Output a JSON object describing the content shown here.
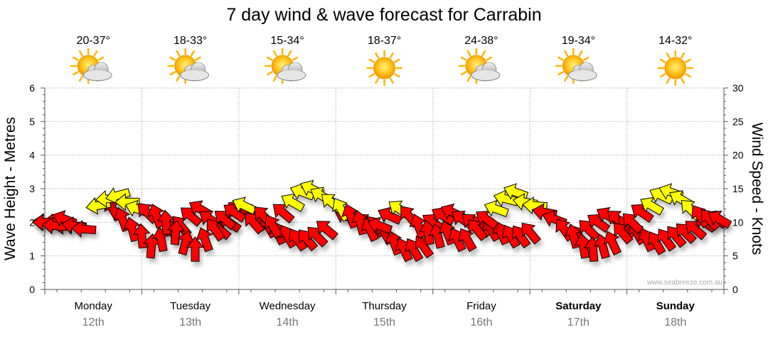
{
  "chart_data": {
    "type": "line",
    "title": "7 day wind & wave forecast for Carrabin",
    "ylabel_left": "Wave Height - Metres",
    "ylabel_right": "Wind Speed - Knots",
    "left_axis": {
      "min": 0,
      "max": 6,
      "ticks": [
        "0",
        "1",
        "2",
        "3",
        "4",
        "5",
        "6"
      ]
    },
    "right_axis": {
      "min": 0,
      "max": 30,
      "ticks": [
        "0",
        "5",
        "10",
        "15",
        "20",
        "25",
        "30"
      ]
    },
    "watermark": "www.seabreeze.com.au",
    "days": [
      {
        "name": "Monday",
        "date": "12th",
        "temp": "20-37°",
        "weather": "partly-cloudy-icon",
        "bold": false
      },
      {
        "name": "Tuesday",
        "date": "13th",
        "temp": "18-33°",
        "weather": "partly-cloudy-icon",
        "bold": false
      },
      {
        "name": "Wednesday",
        "date": "14th",
        "temp": "15-34°",
        "weather": "partly-cloudy-icon",
        "bold": false
      },
      {
        "name": "Thursday",
        "date": "15th",
        "temp": "18-37°",
        "weather": "sunny-icon",
        "bold": false
      },
      {
        "name": "Friday",
        "date": "16th",
        "temp": "24-38°",
        "weather": "partly-cloudy-icon",
        "bold": false
      },
      {
        "name": "Saturday",
        "date": "17th",
        "temp": "19-34°",
        "weather": "partly-cloudy-icon",
        "bold": true
      },
      {
        "name": "Sunday",
        "date": "18th",
        "temp": "14-32°",
        "weather": "sunny-icon",
        "bold": true
      }
    ],
    "wind_series": {
      "name": "Wind Speed",
      "x_unit": "days",
      "points": [
        {
          "t": 0.0,
          "v": 10.0,
          "dir": 180
        },
        {
          "t": 0.1,
          "v": 9.5,
          "dir": 185
        },
        {
          "t": 0.2,
          "v": 10.5,
          "dir": 200
        },
        {
          "t": 0.3,
          "v": 9.5,
          "dir": 190
        },
        {
          "t": 0.4,
          "v": 9.0,
          "dir": 185
        },
        {
          "t": 0.55,
          "v": 12.5,
          "dir": 170
        },
        {
          "t": 0.65,
          "v": 13.5,
          "dir": 175
        },
        {
          "t": 0.75,
          "v": 14.0,
          "dir": 165
        },
        {
          "t": 0.85,
          "v": 13.0,
          "dir": 180
        },
        {
          "t": 0.95,
          "v": 12.0,
          "dir": 200
        },
        {
          "t": 1.05,
          "v": 11.5,
          "dir": 225
        },
        {
          "t": 1.15,
          "v": 11.0,
          "dir": 250
        },
        {
          "t": 1.25,
          "v": 10.0,
          "dir": 265
        },
        {
          "t": 1.35,
          "v": 8.5,
          "dir": 275
        },
        {
          "t": 1.45,
          "v": 7.0,
          "dir": 285
        },
        {
          "t": 1.55,
          "v": 6.0,
          "dir": 270
        },
        {
          "t": 1.65,
          "v": 7.5,
          "dir": 250
        },
        {
          "t": 1.75,
          "v": 9.0,
          "dir": 235
        },
        {
          "t": 1.85,
          "v": 10.5,
          "dir": 220
        },
        {
          "t": 1.95,
          "v": 11.5,
          "dir": 215
        },
        {
          "t": 2.05,
          "v": 12.5,
          "dir": 205
        },
        {
          "t": 2.15,
          "v": 10.0,
          "dir": 230
        },
        {
          "t": 2.25,
          "v": 11.0,
          "dir": 225
        },
        {
          "t": 2.35,
          "v": 9.5,
          "dir": 240
        },
        {
          "t": 2.45,
          "v": 11.5,
          "dir": 220
        },
        {
          "t": 2.55,
          "v": 13.0,
          "dir": 210
        },
        {
          "t": 2.65,
          "v": 14.5,
          "dir": 200
        },
        {
          "t": 2.75,
          "v": 15.0,
          "dir": 205
        },
        {
          "t": 2.85,
          "v": 14.0,
          "dir": 210
        },
        {
          "t": 2.95,
          "v": 13.0,
          "dir": 220
        },
        {
          "t": 3.05,
          "v": 12.0,
          "dir": 240
        },
        {
          "t": 3.15,
          "v": 11.0,
          "dir": 250
        },
        {
          "t": 3.25,
          "v": 10.0,
          "dir": 255
        },
        {
          "t": 3.35,
          "v": 9.0,
          "dir": 245
        },
        {
          "t": 3.45,
          "v": 9.5,
          "dir": 200
        },
        {
          "t": 3.55,
          "v": 11.0,
          "dir": 205
        },
        {
          "t": 3.65,
          "v": 12.0,
          "dir": 215
        },
        {
          "t": 3.75,
          "v": 11.0,
          "dir": 230
        },
        {
          "t": 3.85,
          "v": 9.5,
          "dir": 250
        },
        {
          "t": 3.95,
          "v": 8.5,
          "dir": 260
        },
        {
          "t": 4.05,
          "v": 8.0,
          "dir": 255
        },
        {
          "t": 4.15,
          "v": 8.5,
          "dir": 250
        },
        {
          "t": 4.25,
          "v": 7.5,
          "dir": 245
        },
        {
          "t": 4.35,
          "v": 7.5,
          "dir": 240
        },
        {
          "t": 4.45,
          "v": 9.0,
          "dir": 230
        },
        {
          "t": 4.55,
          "v": 10.5,
          "dir": 215
        },
        {
          "t": 4.65,
          "v": 12.0,
          "dir": 200
        },
        {
          "t": 4.75,
          "v": 13.5,
          "dir": 195
        },
        {
          "t": 4.85,
          "v": 14.5,
          "dir": 200
        },
        {
          "t": 4.95,
          "v": 13.0,
          "dir": 190
        },
        {
          "t": 5.05,
          "v": 12.5,
          "dir": 185
        },
        {
          "t": 5.15,
          "v": 11.5,
          "dir": 190
        },
        {
          "t": 5.25,
          "v": 10.5,
          "dir": 200
        },
        {
          "t": 5.35,
          "v": 9.0,
          "dir": 235
        },
        {
          "t": 5.45,
          "v": 8.0,
          "dir": 255
        },
        {
          "t": 5.55,
          "v": 6.5,
          "dir": 260
        },
        {
          "t": 5.65,
          "v": 6.0,
          "dir": 265
        },
        {
          "t": 5.75,
          "v": 6.5,
          "dir": 255
        },
        {
          "t": 5.85,
          "v": 7.0,
          "dir": 245
        },
        {
          "t": 5.95,
          "v": 8.5,
          "dir": 230
        },
        {
          "t": 6.05,
          "v": 10.0,
          "dir": 225
        },
        {
          "t": 6.15,
          "v": 11.5,
          "dir": 215
        },
        {
          "t": 6.25,
          "v": 12.5,
          "dir": 210
        },
        {
          "t": 6.35,
          "v": 14.0,
          "dir": 205
        },
        {
          "t": 6.45,
          "v": 14.5,
          "dir": 200
        },
        {
          "t": 6.55,
          "v": 13.5,
          "dir": 210
        },
        {
          "t": 6.65,
          "v": 12.0,
          "dir": 225
        },
        {
          "t": 6.75,
          "v": 11.0,
          "dir": 235
        },
        {
          "t": 6.85,
          "v": 10.5,
          "dir": 230
        },
        {
          "t": 6.95,
          "v": 10.5,
          "dir": 210
        }
      ]
    },
    "wave_series": {
      "name": "Wave Height",
      "x_unit": "days",
      "points": [
        {
          "t": 0.0,
          "v": 2.0,
          "dir": 185
        },
        {
          "t": 0.1,
          "v": 2.0,
          "dir": 180
        },
        {
          "t": 0.2,
          "v": 1.9,
          "dir": 175
        },
        {
          "t": 0.3,
          "v": 1.9,
          "dir": 185
        },
        {
          "t": 0.7,
          "v": 2.4,
          "dir": 240
        },
        {
          "t": 0.8,
          "v": 2.1,
          "dir": 250
        },
        {
          "t": 0.9,
          "v": 1.8,
          "dir": 255
        },
        {
          "t": 1.0,
          "v": 1.6,
          "dir": 265
        },
        {
          "t": 1.1,
          "v": 1.3,
          "dir": 275
        },
        {
          "t": 1.2,
          "v": 1.5,
          "dir": 260
        },
        {
          "t": 1.3,
          "v": 1.8,
          "dir": 240
        },
        {
          "t": 1.4,
          "v": 1.9,
          "dir": 230
        },
        {
          "t": 1.5,
          "v": 2.2,
          "dir": 220
        },
        {
          "t": 1.6,
          "v": 2.4,
          "dir": 210
        },
        {
          "t": 1.7,
          "v": 2.1,
          "dir": 215
        },
        {
          "t": 1.8,
          "v": 1.8,
          "dir": 220
        },
        {
          "t": 1.9,
          "v": 2.0,
          "dir": 215
        },
        {
          "t": 2.0,
          "v": 2.4,
          "dir": 210
        },
        {
          "t": 2.1,
          "v": 2.3,
          "dir": 220
        },
        {
          "t": 2.2,
          "v": 2.1,
          "dir": 235
        },
        {
          "t": 2.3,
          "v": 1.9,
          "dir": 240
        },
        {
          "t": 2.4,
          "v": 1.7,
          "dir": 245
        },
        {
          "t": 2.5,
          "v": 1.6,
          "dir": 240
        },
        {
          "t": 2.6,
          "v": 1.5,
          "dir": 235
        },
        {
          "t": 2.7,
          "v": 1.5,
          "dir": 230
        },
        {
          "t": 2.8,
          "v": 1.6,
          "dir": 225
        },
        {
          "t": 2.9,
          "v": 1.8,
          "dir": 220
        },
        {
          "t": 3.1,
          "v": 2.2,
          "dir": 205
        },
        {
          "t": 3.2,
          "v": 2.1,
          "dir": 210
        },
        {
          "t": 3.3,
          "v": 2.0,
          "dir": 220
        },
        {
          "t": 3.4,
          "v": 1.9,
          "dir": 230
        },
        {
          "t": 3.5,
          "v": 1.7,
          "dir": 240
        },
        {
          "t": 3.6,
          "v": 1.4,
          "dir": 250
        },
        {
          "t": 3.7,
          "v": 1.2,
          "dir": 245
        },
        {
          "t": 3.8,
          "v": 1.2,
          "dir": 240
        },
        {
          "t": 3.9,
          "v": 1.3,
          "dir": 235
        },
        {
          "t": 4.0,
          "v": 2.0,
          "dir": 215
        },
        {
          "t": 4.1,
          "v": 2.2,
          "dir": 210
        },
        {
          "t": 4.2,
          "v": 2.3,
          "dir": 205
        },
        {
          "t": 4.3,
          "v": 2.1,
          "dir": 215
        },
        {
          "t": 4.4,
          "v": 2.0,
          "dir": 220
        },
        {
          "t": 4.5,
          "v": 1.9,
          "dir": 230
        },
        {
          "t": 4.6,
          "v": 1.8,
          "dir": 240
        },
        {
          "t": 4.7,
          "v": 1.7,
          "dir": 245
        },
        {
          "t": 4.8,
          "v": 1.6,
          "dir": 240
        },
        {
          "t": 4.9,
          "v": 1.6,
          "dir": 235
        },
        {
          "t": 5.0,
          "v": 1.7,
          "dir": 230
        },
        {
          "t": 5.5,
          "v": 1.6,
          "dir": 235
        },
        {
          "t": 5.6,
          "v": 1.8,
          "dir": 225
        },
        {
          "t": 5.7,
          "v": 2.0,
          "dir": 215
        },
        {
          "t": 5.8,
          "v": 2.2,
          "dir": 210
        },
        {
          "t": 5.9,
          "v": 2.1,
          "dir": 220
        },
        {
          "t": 6.0,
          "v": 1.9,
          "dir": 230
        },
        {
          "t": 6.1,
          "v": 1.7,
          "dir": 240
        },
        {
          "t": 6.2,
          "v": 1.5,
          "dir": 245
        },
        {
          "t": 6.3,
          "v": 1.4,
          "dir": 240
        },
        {
          "t": 6.4,
          "v": 1.5,
          "dir": 235
        },
        {
          "t": 6.5,
          "v": 1.6,
          "dir": 230
        },
        {
          "t": 6.6,
          "v": 1.7,
          "dir": 225
        },
        {
          "t": 6.7,
          "v": 1.8,
          "dir": 220
        },
        {
          "t": 6.8,
          "v": 2.0,
          "dir": 215
        },
        {
          "t": 6.9,
          "v": 2.1,
          "dir": 210
        }
      ]
    },
    "colors": {
      "wave_arrow": "#ff0000",
      "wind_arrow": "#ffff00",
      "wind_arrow_calm": "#ff0000",
      "outline": "#000000",
      "grid": "#999999",
      "date_text": "#777777"
    }
  }
}
